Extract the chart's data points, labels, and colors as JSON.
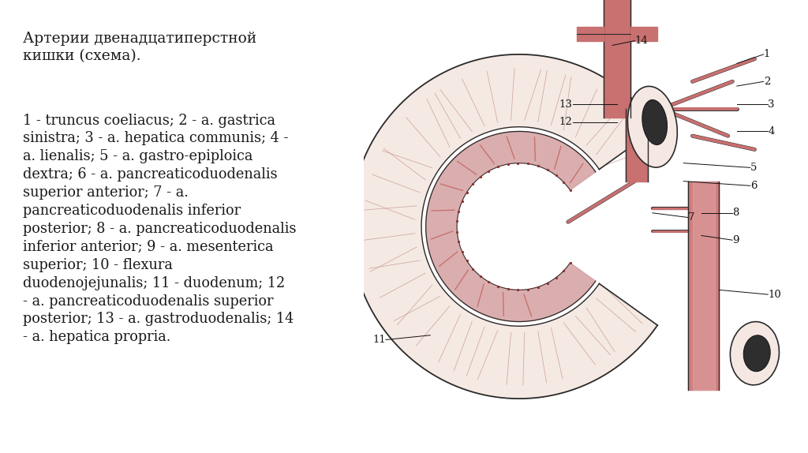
{
  "background_color": "#ffffff",
  "title_text": "Артерии двенадцатиперстной\nкишки (схема).",
  "body_text": "1 - truncus coeliacus; 2 - a. gastrica\nsinistra; 3 - a. hepatica communis; 4 -\na. lienalis; 5 - a. gastro-epiploica\ndextra; 6 - a. pancreaticoduodenalis\nsuperior anterior; 7 - a.\npancreaticoduodenalis inferior\nposterior; 8 - a. pancreaticoduodenalis\ninferior anterior; 9 - a. mesenterica\nsuperior; 10 - flexura\nduodenojejunalis; 11 - duodenum; 12\n- a. pancreaticoduodenalis superior\nposterior; 13 - a. gastroduodenalis; 14\n- a. hepatica propria.",
  "title_fontsize": 13.5,
  "body_fontsize": 12.8,
  "text_color": "#1a1a1a",
  "fig_width": 10.24,
  "fig_height": 5.74,
  "duodenum_fill": "#f5e8e2",
  "artery_color": "#c97070",
  "outline_color": "#2a2a2a",
  "label_fontsize": 9.5,
  "label_color": "#111111"
}
